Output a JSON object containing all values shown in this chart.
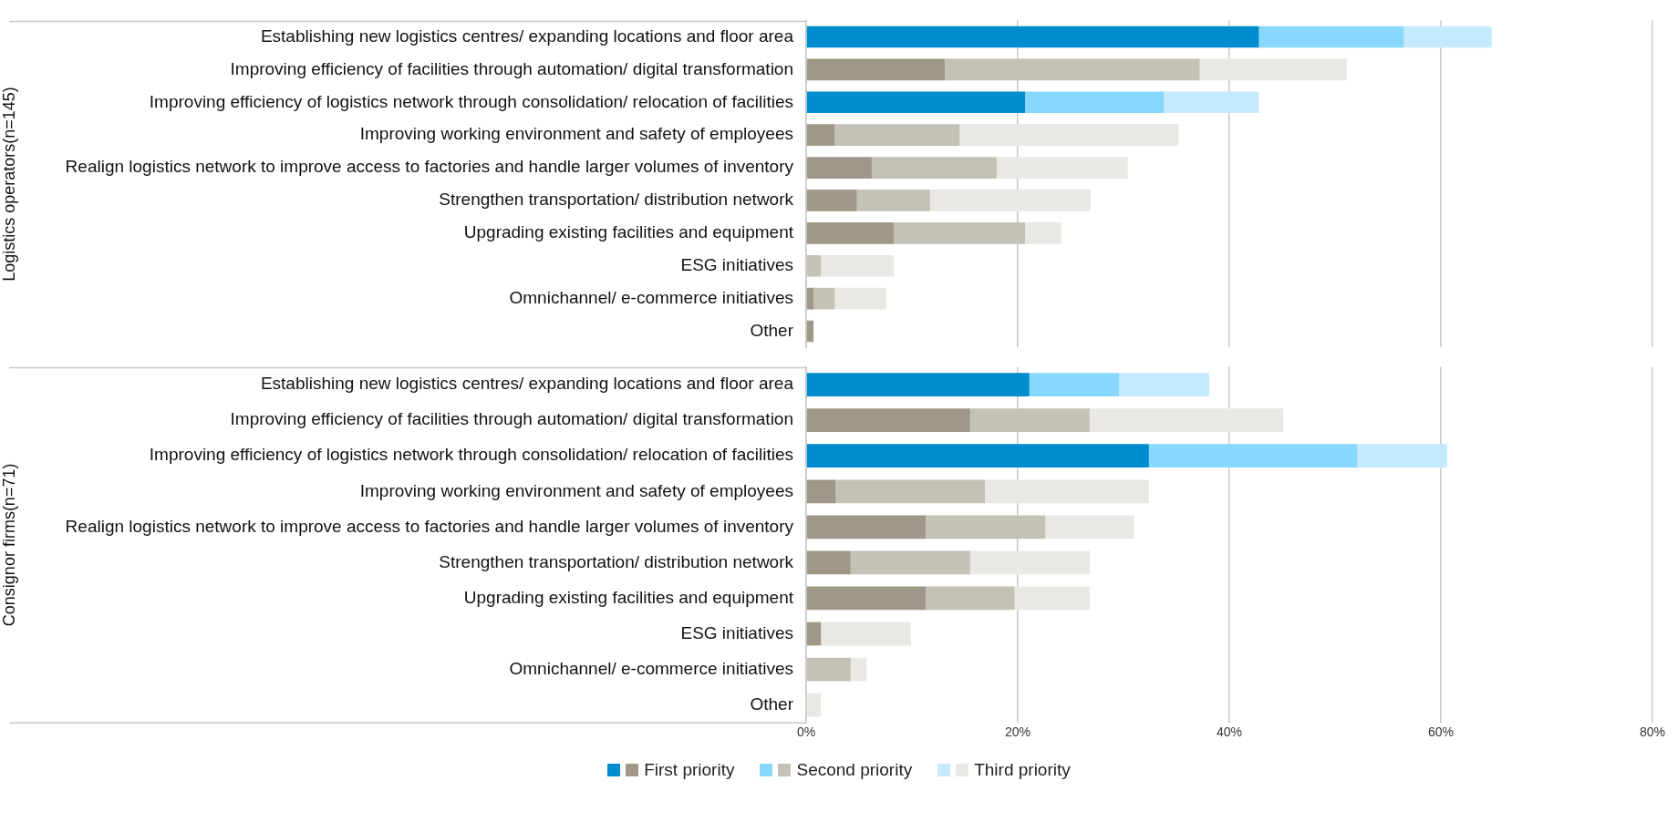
{
  "chart_data": [
    {
      "type": "bar",
      "orientation": "horizontal",
      "stacked": true,
      "ylabel": "Logistics operators(n=145)",
      "grid": "x",
      "tick_labels": "y",
      "categories": [
        "Establishing new logistics centres/ expanding locations and floor area",
        "Improving efficiency of facilities through automation/ digital transformation",
        "Improving efficiency of logistics network through consolidation/ relocation of facilities",
        "Improving working environment and safety of employees",
        "Realign logistics network to improve access to factories and handle larger volumes of inventory",
        "Strengthen transportation/ distribution network",
        "Upgrading existing facilities and equipment",
        "ESG initiatives",
        "Omnichannel/ e-commerce initiatives",
        "Other"
      ],
      "xlim": [
        0,
        80
      ],
      "xticks": [
        {
          "value": 0,
          "label": null
        },
        {
          "value": 20,
          "label": null
        },
        {
          "value": 40,
          "label": null
        },
        {
          "value": 60,
          "label": null
        },
        {
          "value": 80,
          "label": null
        }
      ],
      "series": [
        {
          "colors": [
            "#008ccf",
            "#9f9888",
            "#008ccf",
            "#9f9888",
            "#9f9888",
            "#9f9888",
            "#9f9888",
            "#9f9888",
            "#9f9888",
            "#9f9888"
          ],
          "values": [
            42.8,
            13.1,
            20.7,
            2.7,
            6.2,
            4.8,
            8.3,
            0,
            0.7,
            0.7
          ]
        },
        {
          "colors": [
            "#88d8fd",
            "#c4c1b5",
            "#88d8fd",
            "#c4c1b5",
            "#c4c1b5",
            "#c4c1b5",
            "#c4c1b5",
            "#c4c1b5",
            "#c4c1b5",
            "#c4c1b5"
          ],
          "values": [
            13.7,
            24.1,
            13.1,
            11.8,
            11.8,
            6.9,
            12.4,
            1.4,
            2.0,
            0
          ]
        },
        {
          "colors": [
            "#c3eafe",
            "#e9e8e4",
            "#c3eafe",
            "#e9e8e4",
            "#e9e8e4",
            "#e9e8e4",
            "#e9e8e4",
            "#e9e8e4",
            "#e9e8e4",
            "#e9e8e4"
          ],
          "values": [
            8.3,
            13.9,
            9.0,
            20.7,
            12.4,
            15.2,
            3.4,
            6.9,
            4.9,
            0
          ]
        }
      ]
    },
    {
      "type": "bar",
      "orientation": "horizontal",
      "stacked": true,
      "ylabel": "Consignor firms(n=71)",
      "grid": "x",
      "legend": "bottom",
      "categories": [
        "Establishing new logistics centres/ expanding locations and floor area",
        "Improving efficiency of facilities through automation/ digital transformation",
        "Improving efficiency of logistics network through consolidation/ relocation of facilities",
        "Improving working environment and safety of employees",
        "Realign logistics network to improve access to factories and handle larger volumes of inventory",
        "Strengthen transportation/ distribution network",
        "Upgrading existing facilities and equipment",
        "ESG initiatives",
        "Omnichannel/ e-commerce initiatives",
        "Other"
      ],
      "xlim": [
        0,
        80
      ],
      "xticks": [
        {
          "value": 0,
          "label": "0%"
        },
        {
          "value": 20,
          "label": "20%"
        },
        {
          "value": 40,
          "label": "40%"
        },
        {
          "value": 60,
          "label": "60%"
        },
        {
          "value": 80,
          "label": "80%"
        }
      ],
      "series": [
        {
          "name": "First priority",
          "colors": [
            "#008ccf",
            "#9f9888",
            "#008ccf",
            "#9f9888",
            "#9f9888",
            "#9f9888",
            "#9f9888",
            "#9f9888",
            "#9f9888",
            "#9f9888"
          ],
          "values": [
            21.1,
            15.5,
            32.4,
            2.8,
            11.3,
            4.2,
            11.3,
            1.4,
            0,
            0
          ]
        },
        {
          "name": "Second priority",
          "colors": [
            "#88d8fd",
            "#c4c1b5",
            "#88d8fd",
            "#c4c1b5",
            "#c4c1b5",
            "#c4c1b5",
            "#c4c1b5",
            "#c4c1b5",
            "#c4c1b5",
            "#c4c1b5"
          ],
          "values": [
            8.5,
            11.3,
            19.7,
            14.1,
            11.3,
            11.3,
            8.4,
            0,
            4.2,
            0
          ]
        },
        {
          "name": "Third priority",
          "colors": [
            "#c3eafe",
            "#e9e8e4",
            "#c3eafe",
            "#e9e8e4",
            "#e9e8e4",
            "#e9e8e4",
            "#e9e8e4",
            "#e9e8e4",
            "#e9e8e4",
            "#e9e8e4"
          ],
          "values": [
            8.5,
            18.3,
            8.5,
            15.5,
            8.4,
            11.3,
            7.1,
            8.5,
            1.5,
            1.4
          ]
        }
      ]
    }
  ]
}
